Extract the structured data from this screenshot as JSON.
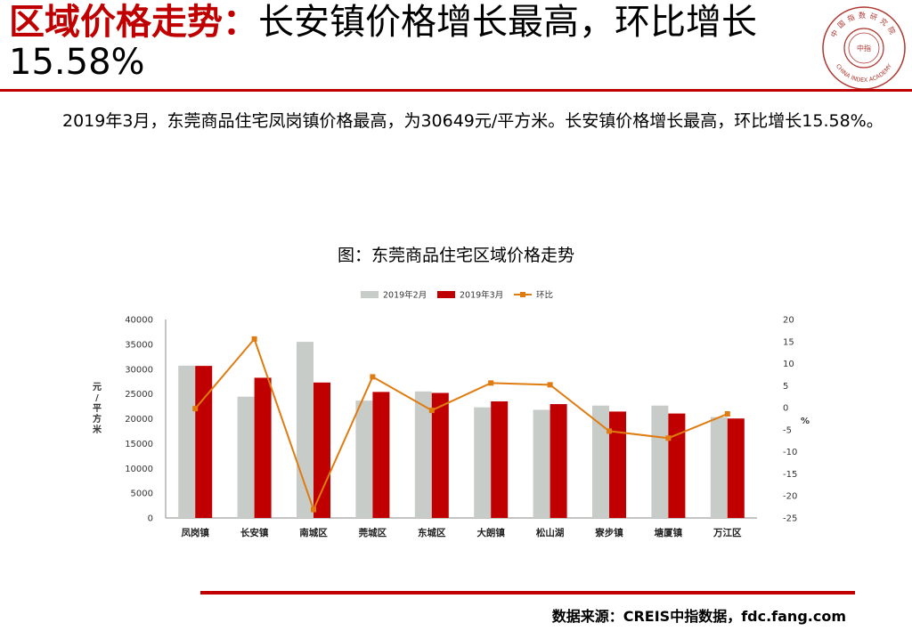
{
  "header": {
    "title_highlight": "区域价格走势：",
    "title_rest": "长安镇价格增长最高，环比增长",
    "title_line2": "15.58%"
  },
  "logo": {
    "icon": "seal-logo-icon",
    "text_top": "中国指数研究院",
    "text_center": "中指",
    "text_bottom": "CHINA INDEX ACADEMY"
  },
  "summary": "2019年3月，东莞商品住宅凤岗镇价格最高，为30649元/平方米。长安镇价格增长最高，环比增长15.58%。",
  "chart_title": "图：东莞商品住宅区域价格走势",
  "source": "数据来源：CREIS中指数据，fdc.fang.com",
  "colors": {
    "accent": "#c00000",
    "feb": "#c8ccc9",
    "mar": "#c00000",
    "mom": "#e07b10"
  },
  "chart_data": {
    "type": "bar",
    "categories": [
      "凤岗镇",
      "长安镇",
      "南城区",
      "莞城区",
      "东城区",
      "大朗镇",
      "松山湖",
      "寮步镇",
      "塘厦镇",
      "万江区"
    ],
    "series": [
      {
        "name": "2019年2月",
        "type": "bar",
        "axis": "left",
        "values": [
          30700,
          24450,
          35500,
          23650,
          25500,
          22300,
          21800,
          22650,
          22650,
          20350
        ]
      },
      {
        "name": "2019年3月",
        "type": "bar",
        "axis": "left",
        "values": [
          30649,
          28260,
          27300,
          25400,
          25200,
          23500,
          22950,
          21450,
          21050,
          20050
        ]
      },
      {
        "name": "环比",
        "type": "line",
        "axis": "right",
        "values": [
          -0.2,
          15.58,
          -23.1,
          7.0,
          -0.6,
          5.6,
          5.2,
          -5.3,
          -6.9,
          -1.4
        ]
      }
    ],
    "ylabel": "元/平方米",
    "y2label": "%",
    "ylim": [
      0,
      40000
    ],
    "yticks": [
      "0",
      "5000",
      "10000",
      "15000",
      "20000",
      "25000",
      "30000",
      "35000",
      "40000"
    ],
    "y2lim": [
      -25,
      20
    ],
    "y2ticks": [
      "-25",
      "-20",
      "-15",
      "-10",
      "-5",
      "0",
      "5",
      "10",
      "15",
      "20"
    ],
    "legend_position": "top",
    "grid": false
  }
}
